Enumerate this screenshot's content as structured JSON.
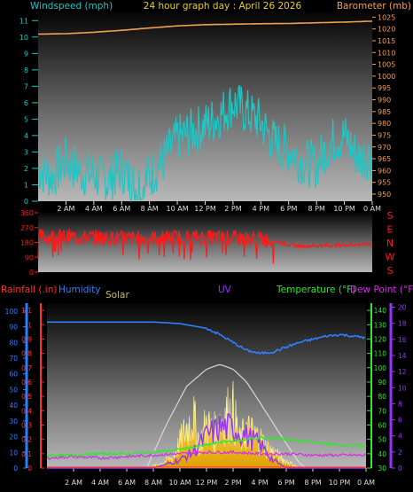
{
  "header": {
    "windspeed_label": "Windspeed (mph)",
    "title": "24 hour graph day : April 26 2026",
    "barometer_label": "Barometer (mb)"
  },
  "colors": {
    "windspeed": "#22c4c4",
    "title": "#e8d030",
    "barometer": "#f0a050",
    "direction": "#ff1a1a",
    "rainfall": "#ff3030",
    "humidity": "#2f7fff",
    "solar": "#c8b868",
    "uv": "#9b30ff",
    "temperature": "#2ee82e",
    "dewpoint": "#d030e0",
    "axis_tick": "#dddddd"
  },
  "time_labels": [
    "2 AM",
    "4 AM",
    "6 AM",
    "8 AM",
    "10 AM",
    "12 PM",
    "2 PM",
    "4 PM",
    "6 PM",
    "8 PM",
    "10 PM",
    "0 AM"
  ],
  "chart_data": [
    {
      "type": "line",
      "x_label_note": "hours 0-24",
      "series": [
        {
          "name": "Windspeed (mph)",
          "axis": "left",
          "ylim": [
            0,
            11.5
          ],
          "x": [
            0,
            1,
            2,
            3,
            4,
            5,
            6,
            7,
            8,
            9,
            10,
            11,
            12,
            13,
            14,
            15,
            16,
            17,
            18,
            19,
            20,
            21,
            22,
            23,
            24
          ],
          "values": [
            2.0,
            1.5,
            2.5,
            1.8,
            1.6,
            1.2,
            2.0,
            0.8,
            1.5,
            2.5,
            3.8,
            4.2,
            4.6,
            5.2,
            6.0,
            5.4,
            4.8,
            3.5,
            3.2,
            2.4,
            2.2,
            3.6,
            4.0,
            2.6,
            2.8
          ]
        },
        {
          "name": "Barometer (mb)",
          "axis": "right",
          "ylim": [
            947,
            1027
          ],
          "x": [
            0,
            2,
            4,
            6,
            8,
            10,
            12,
            14,
            16,
            18,
            20,
            22,
            24
          ],
          "values": [
            1017.8,
            1018.0,
            1018.6,
            1019.4,
            1020.4,
            1021.3,
            1021.8,
            1022.0,
            1022.2,
            1022.3,
            1022.6,
            1022.9,
            1023.3
          ]
        }
      ],
      "left_ticks": [
        0,
        1,
        2,
        3,
        4,
        5,
        6,
        7,
        8,
        9,
        10,
        11
      ],
      "right_ticks": [
        950,
        955,
        960,
        965,
        970,
        975,
        980,
        985,
        990,
        995,
        1000,
        1005,
        1010,
        1015,
        1020,
        1025
      ]
    },
    {
      "type": "line",
      "series": [
        {
          "name": "Wind direction",
          "axis": "left",
          "ylim": [
            0,
            360
          ],
          "x": [
            0,
            2,
            4,
            6,
            8,
            10,
            12,
            14,
            16,
            17,
            18,
            19,
            20,
            22,
            24
          ],
          "values": [
            215,
            215,
            210,
            205,
            205,
            212,
            210,
            205,
            200,
            190,
            165,
            158,
            160,
            165,
            170
          ]
        }
      ],
      "left_ticks": [
        0,
        90,
        180,
        270,
        360
      ],
      "right_labels": [
        "S",
        "E",
        "N",
        "W",
        "S"
      ]
    },
    {
      "type": "area",
      "labels": {
        "rainfall": "Rainfall (.in)",
        "humidity": "Humidity",
        "solar": "Solar",
        "uv": "UV",
        "temperature": "Temperature (°F)",
        "dewpoint": "Dew Point (°F)"
      },
      "left_ticks": [
        0,
        10,
        20,
        30,
        40,
        50,
        60,
        70,
        80,
        90,
        100
      ],
      "rain_ticks": [
        0,
        0.1,
        0.2,
        0.3,
        0.4,
        0.5,
        0.6,
        0.7,
        0.8,
        0.9,
        1,
        1.1
      ],
      "temp_ticks": [
        30,
        40,
        50,
        60,
        70,
        80,
        90,
        100,
        110,
        120,
        130,
        140
      ],
      "uv_ticks": [
        0,
        2,
        4,
        6,
        8,
        10,
        12,
        14,
        16,
        18,
        20
      ],
      "series": [
        {
          "name": "Humidity",
          "axis": "left",
          "ylim": [
            0,
            100
          ],
          "x": [
            0,
            2,
            4,
            6,
            8,
            10,
            12,
            13,
            14,
            15,
            16,
            17,
            18,
            19,
            20,
            21,
            22,
            23,
            24
          ],
          "values": [
            93,
            93,
            93,
            93,
            93,
            92,
            89,
            85,
            80,
            75,
            73,
            74,
            77,
            80,
            82,
            84,
            85,
            84,
            83
          ]
        },
        {
          "name": "Temperature (°F)",
          "axis": "temp",
          "ylim": [
            30,
            145
          ],
          "x": [
            0,
            2,
            4,
            6,
            8,
            10,
            12,
            13,
            14,
            15,
            16,
            17,
            18,
            19,
            20,
            21,
            22,
            23,
            24
          ],
          "values": [
            39,
            39,
            40,
            40,
            41,
            43,
            46,
            48,
            49,
            50,
            51,
            51,
            50,
            49,
            48,
            47,
            46,
            46,
            45
          ]
        },
        {
          "name": "Dew Point (°F)",
          "axis": "temp",
          "ylim": [
            30,
            145
          ],
          "x": [
            0,
            2,
            4,
            6,
            8,
            10,
            12,
            14,
            16,
            18,
            20,
            22,
            24
          ],
          "values": [
            37,
            38,
            37,
            38,
            39,
            40,
            41,
            41,
            40,
            40,
            39,
            39,
            39
          ]
        },
        {
          "name": "Solar",
          "axis": "left",
          "ylim": [
            0,
            100
          ],
          "x": [
            0,
            7.5,
            8.5,
            9.5,
            10.5,
            11,
            11.5,
            12,
            12.5,
            13,
            13.5,
            14,
            14.5,
            15,
            15.5,
            16,
            16.5,
            17,
            17.5,
            18,
            19,
            24
          ],
          "values": [
            0,
            0,
            3,
            8,
            30,
            38,
            18,
            34,
            25,
            35,
            40,
            42,
            20,
            28,
            25,
            22,
            15,
            12,
            8,
            5,
            0,
            0
          ]
        },
        {
          "name": "Solar max",
          "axis": "left",
          "ylim": [
            0,
            100
          ],
          "x": [
            7.5,
            9,
            10.5,
            12,
            13,
            14,
            15,
            16,
            17.5,
            19,
            19.5
          ],
          "values": [
            0,
            28,
            52,
            63,
            66,
            63,
            55,
            42,
            22,
            3,
            0
          ]
        },
        {
          "name": "UV",
          "axis": "uv",
          "ylim": [
            0,
            20
          ],
          "x": [
            0,
            8,
            10,
            11,
            12,
            13,
            14,
            15,
            16,
            17,
            18,
            24
          ],
          "values": [
            0,
            0,
            1,
            2,
            4,
            5,
            5,
            4,
            3,
            1,
            0,
            0
          ]
        }
      ]
    }
  ]
}
